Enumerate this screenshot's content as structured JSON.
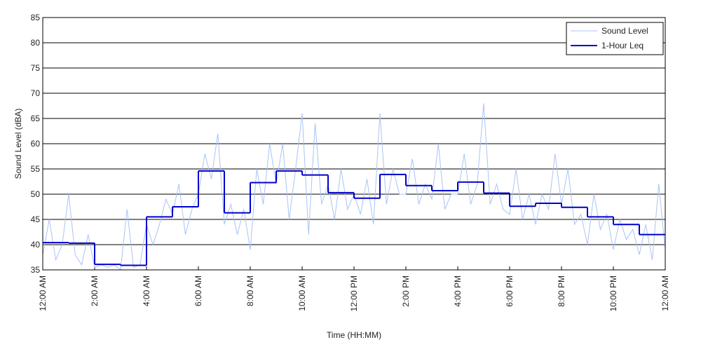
{
  "chart_data": {
    "type": "line",
    "x_label": "Time (HH:MM)",
    "y_label": "Sound Level (dBA)",
    "xlim": [
      0,
      24
    ],
    "ylim": [
      35,
      85
    ],
    "xticks": [
      {
        "value": 0,
        "label": "12:00 AM"
      },
      {
        "value": 2,
        "label": "2:00 AM"
      },
      {
        "value": 4,
        "label": "4:00 AM"
      },
      {
        "value": 6,
        "label": "6:00 AM"
      },
      {
        "value": 8,
        "label": "8:00 AM"
      },
      {
        "value": 10,
        "label": "10:00 AM"
      },
      {
        "value": 12,
        "label": "12:00 PM"
      },
      {
        "value": 14,
        "label": "2:00 PM"
      },
      {
        "value": 16,
        "label": "4:00 PM"
      },
      {
        "value": 18,
        "label": "6:00 PM"
      },
      {
        "value": 20,
        "label": "8:00 PM"
      },
      {
        "value": 22,
        "label": "10:00 PM"
      },
      {
        "value": 24,
        "label": "12:00 AM"
      }
    ],
    "yticks": [
      35,
      40,
      45,
      50,
      55,
      60,
      65,
      70,
      75,
      80,
      85
    ],
    "grid": true,
    "legend": "northeast",
    "series": [
      {
        "name": "Sound Level",
        "color": "#a9c4f5",
        "step": false,
        "x": [
          0,
          0.25,
          0.5,
          0.75,
          1,
          1.25,
          1.5,
          1.75,
          2,
          2.25,
          2.5,
          2.75,
          3,
          3.25,
          3.5,
          3.75,
          4,
          4.25,
          4.5,
          4.75,
          5,
          5.25,
          5.5,
          5.75,
          6,
          6.25,
          6.5,
          6.75,
          7,
          7.25,
          7.5,
          7.75,
          8,
          8.25,
          8.5,
          8.75,
          9,
          9.25,
          9.5,
          9.75,
          10,
          10.25,
          10.5,
          10.75,
          11,
          11.25,
          11.5,
          11.75,
          12,
          12.25,
          12.5,
          12.75,
          13,
          13.25,
          13.5,
          13.75,
          14,
          14.25,
          14.5,
          14.75,
          15,
          15.25,
          15.5,
          15.75,
          16,
          16.25,
          16.5,
          16.75,
          17,
          17.25,
          17.5,
          17.75,
          18,
          18.25,
          18.5,
          18.75,
          19,
          19.25,
          19.5,
          19.75,
          20,
          20.25,
          20.5,
          20.75,
          21,
          21.25,
          21.5,
          21.75,
          22,
          22.25,
          22.5,
          22.75,
          23,
          23.25,
          23.5,
          23.75,
          24
        ],
        "values": [
          38,
          45,
          37,
          40,
          50,
          38,
          36,
          42,
          35.5,
          36,
          35.5,
          36,
          35,
          47,
          35.5,
          36,
          44,
          40,
          44,
          49,
          46,
          52,
          42,
          47,
          50,
          58,
          53,
          62,
          44,
          48,
          42,
          47,
          39,
          55,
          48,
          60,
          52,
          60,
          45,
          55,
          66,
          42,
          64,
          48,
          52,
          45,
          55,
          47,
          50,
          46,
          53,
          44,
          66,
          48,
          55,
          50,
          50,
          57,
          48,
          52,
          49,
          60,
          47,
          50,
          50,
          58,
          48,
          52,
          68,
          48,
          52,
          47,
          46,
          55,
          45,
          50,
          44,
          50,
          47,
          58,
          48,
          55,
          44,
          46,
          40,
          50,
          43,
          46,
          39,
          45,
          41,
          43,
          38,
          44,
          37,
          52,
          39
        ]
      },
      {
        "name": "1-Hour Leq",
        "color": "#0000cc",
        "step": true,
        "x": [
          0,
          1,
          2,
          3,
          4,
          5,
          6,
          7,
          8,
          9,
          10,
          11,
          12,
          13,
          14,
          15,
          16,
          17,
          18,
          19,
          20,
          21,
          22,
          23
        ],
        "values": [
          40.4,
          40.3,
          36.1,
          35.9,
          45.5,
          47.5,
          54.6,
          46.3,
          52.3,
          54.6,
          53.8,
          50.3,
          49.2,
          53.9,
          51.7,
          50.7,
          52.4,
          50.2,
          47.6,
          48.2,
          47.4,
          45.5,
          44.0,
          42.0
        ]
      }
    ]
  }
}
